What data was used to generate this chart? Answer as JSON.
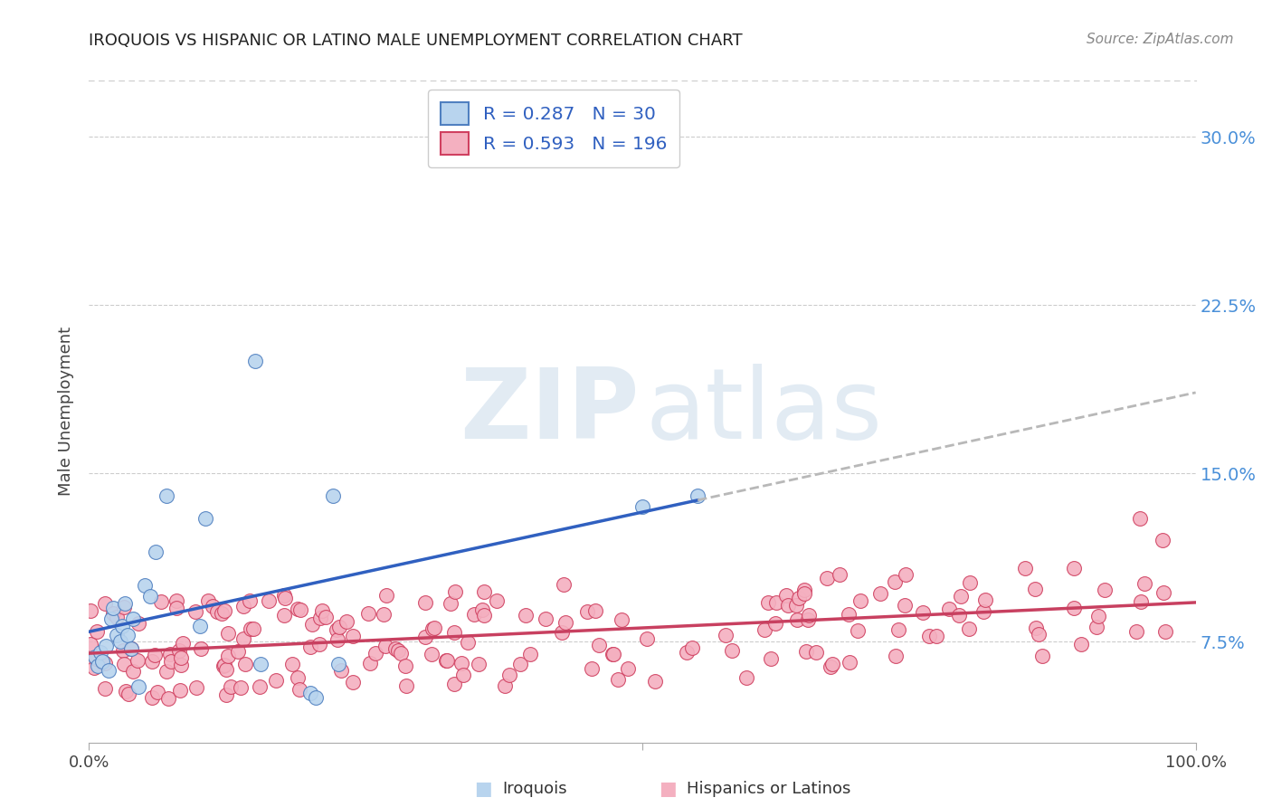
{
  "title": "IROQUOIS VS HISPANIC OR LATINO MALE UNEMPLOYMENT CORRELATION CHART",
  "source": "Source: ZipAtlas.com",
  "ylabel": "Male Unemployment",
  "ytick_labels": [
    "7.5%",
    "15.0%",
    "22.5%",
    "30.0%"
  ],
  "ytick_values": [
    0.075,
    0.15,
    0.225,
    0.3
  ],
  "xlim": [
    0.0,
    1.0
  ],
  "ylim": [
    0.03,
    0.325
  ],
  "iroquois_color_fill": "#b8d4ee",
  "iroquois_color_edge": "#5080c0",
  "hispanic_color_fill": "#f4b0c0",
  "hispanic_color_edge": "#d04060",
  "trend_blue": "#3060c0",
  "trend_pink": "#c84060",
  "trend_gray": "#b8b8b8",
  "background": "#ffffff",
  "grid_color": "#cccccc",
  "r1": 0.287,
  "n1": 30,
  "r2": 0.593,
  "n2": 196,
  "legend_text_color": "#3060c0",
  "right_tick_color": "#4a90d9",
  "iroquois_x": [
    0.005,
    0.008,
    0.01,
    0.012,
    0.015,
    0.018,
    0.02,
    0.022,
    0.025,
    0.028,
    0.03,
    0.032,
    0.035,
    0.038,
    0.04,
    0.045,
    0.05,
    0.055,
    0.06,
    0.07,
    0.1,
    0.105,
    0.15,
    0.155,
    0.2,
    0.205,
    0.22,
    0.225,
    0.5,
    0.55
  ],
  "iroquois_y": [
    0.068,
    0.064,
    0.07,
    0.066,
    0.073,
    0.062,
    0.085,
    0.09,
    0.078,
    0.075,
    0.082,
    0.092,
    0.078,
    0.072,
    0.085,
    0.055,
    0.1,
    0.095,
    0.115,
    0.14,
    0.082,
    0.13,
    0.2,
    0.065,
    0.052,
    0.05,
    0.14,
    0.065,
    0.135,
    0.14
  ]
}
